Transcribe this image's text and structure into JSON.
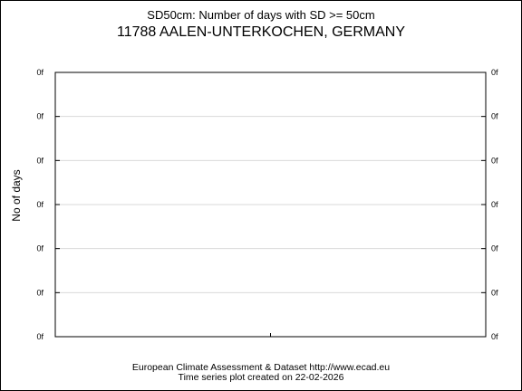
{
  "chart_data": {
    "type": "line",
    "title": "SD50cm: Number of days with SD >= 50cm",
    "subtitle": "11788 AALEN-UNTERKOCHEN, GERMANY",
    "ylabel": "No of days",
    "xlabel": "",
    "ytick_labels_left": [
      "0f",
      "0f",
      "0f",
      "0f",
      "0f",
      "0f",
      "0f"
    ],
    "ytick_labels_right": [
      "0f",
      "0f",
      "0f",
      "0f",
      "0f",
      "0f",
      "0f"
    ],
    "grid": true,
    "series": [],
    "footer_line1": "European Climate Assessment & Dataset  http://www.ecad.eu",
    "footer_line2": "Time series plot created on 22-02-2026"
  }
}
